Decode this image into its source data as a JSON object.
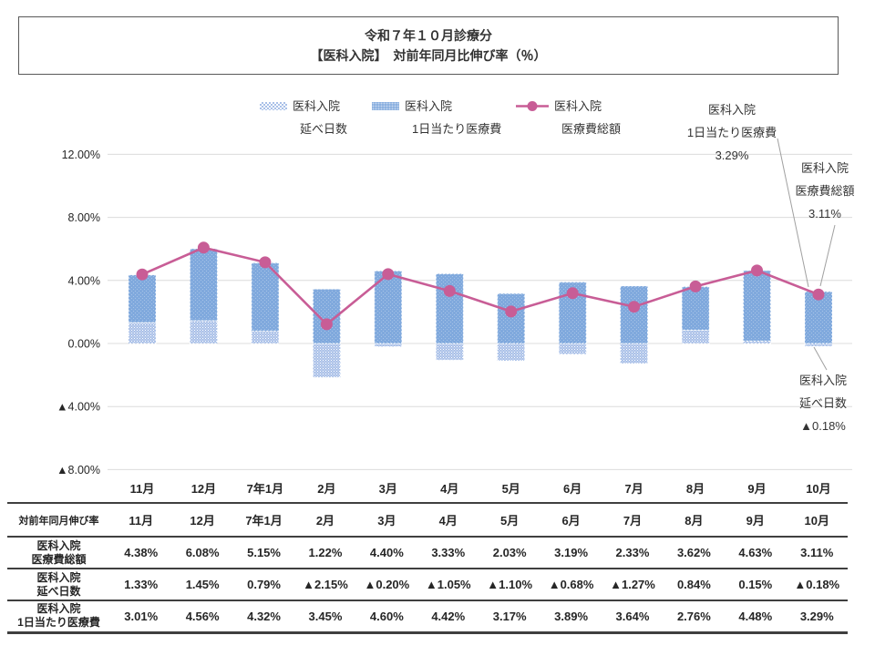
{
  "title": {
    "line1": "令和７年１０月診療分",
    "line2": "【医科入院】　対前年同月比伸び率（％）"
  },
  "colors": {
    "bar_daily_cost": "#80A9DD",
    "bar_days_pattern": "#A9C0E8",
    "line_total": "#C85D96",
    "grid": "#DCDCDC",
    "axis_text": "#262626",
    "annotation_leader": "#A0A0A0",
    "table_border": "#3F3F3F"
  },
  "legend": [
    {
      "name": "医科入院",
      "name2": "延べ日数",
      "type": "bar-hatched"
    },
    {
      "name": "医科入院",
      "name2": "1日当たり医療費",
      "type": "bar-solid"
    },
    {
      "name": "医科入院",
      "name2": "医療費総額",
      "type": "line"
    }
  ],
  "chart_data": {
    "type": "combo (stacked bar + line)",
    "categories": [
      "11月",
      "12月",
      "7年1月",
      "2月",
      "3月",
      "4月",
      "5月",
      "6月",
      "7月",
      "8月",
      "9月",
      "10月"
    ],
    "series": [
      {
        "name": "医科入院 延べ日数",
        "type": "bar",
        "values": [
          1.33,
          1.45,
          0.79,
          -2.15,
          -0.2,
          -1.05,
          -1.1,
          -0.68,
          -1.27,
          0.84,
          0.15,
          -0.18
        ]
      },
      {
        "name": "医科入院 1日当たり医療費",
        "type": "bar",
        "values": [
          3.01,
          4.56,
          4.32,
          3.45,
          4.6,
          4.42,
          3.17,
          3.89,
          3.64,
          2.76,
          4.48,
          3.29
        ]
      },
      {
        "name": "医科入院 医療費総額",
        "type": "line",
        "values": [
          4.38,
          6.08,
          5.15,
          1.22,
          4.4,
          3.33,
          2.03,
          3.19,
          2.33,
          3.62,
          4.63,
          3.11
        ]
      }
    ],
    "ylim": [
      -8,
      12
    ],
    "ytick_values": [
      12,
      8,
      4,
      0,
      -4,
      -8
    ],
    "ytick_labels": [
      "12.00%",
      "8.00%",
      "4.00%",
      "0.00%",
      "▲4.00%",
      "▲8.00%"
    ],
    "grid": "horizontal only",
    "legend_position": "top-center"
  },
  "annotations": [
    {
      "lines": [
        "医科入院",
        "1日当たり医療費",
        "3.29%"
      ],
      "target": "10月 1日当たり医療費 bar top"
    },
    {
      "lines": [
        "医科入院",
        "医療費総額",
        "3.11%"
      ],
      "target": "10月 医療費総額 line marker"
    },
    {
      "lines": [
        "医科入院",
        "延べ日数",
        "▲0.18%"
      ],
      "target": "10月 延べ日数 bar bottom"
    }
  ],
  "table": {
    "header": {
      "label": "対前年同月伸び率",
      "months": [
        "11月",
        "12月",
        "7年1月",
        "2月",
        "3月",
        "4月",
        "5月",
        "6月",
        "7月",
        "8月",
        "9月",
        "10月"
      ]
    },
    "rows": [
      {
        "label1": "医科入院",
        "label2": "医療費総額",
        "values": [
          "4.38%",
          "6.08%",
          "5.15%",
          "1.22%",
          "4.40%",
          "3.33%",
          "2.03%",
          "3.19%",
          "2.33%",
          "3.62%",
          "4.63%",
          "3.11%"
        ]
      },
      {
        "label1": "医科入院",
        "label2": "延べ日数",
        "values": [
          "1.33%",
          "1.45%",
          "0.79%",
          "▲2.15%",
          "▲0.20%",
          "▲1.05%",
          "▲1.10%",
          "▲0.68%",
          "▲1.27%",
          "0.84%",
          "0.15%",
          "▲0.18%"
        ]
      },
      {
        "label1": "医科入院",
        "label2": "1日当たり医療費",
        "values": [
          "3.01%",
          "4.56%",
          "4.32%",
          "3.45%",
          "4.60%",
          "4.42%",
          "3.17%",
          "3.89%",
          "3.64%",
          "2.76%",
          "4.48%",
          "3.29%"
        ]
      }
    ]
  }
}
